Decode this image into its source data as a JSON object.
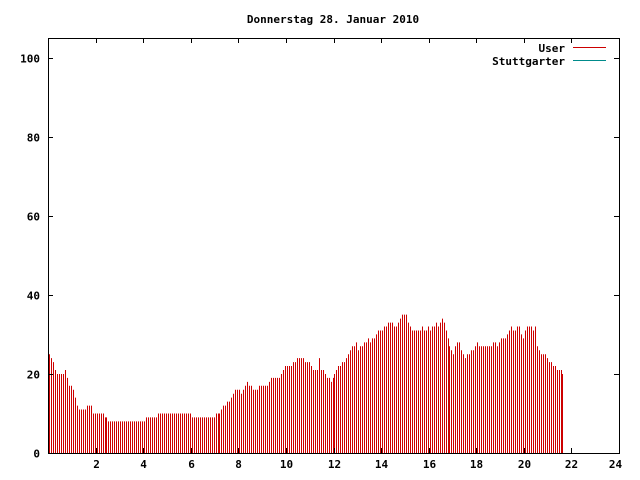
{
  "chart_data": {
    "type": "bar",
    "title": "Donnerstag 28. Januar 2010",
    "xlabel": "",
    "ylabel": "",
    "xlim": [
      0,
      24
    ],
    "ylim": [
      0,
      105
    ],
    "xticks": [
      2,
      4,
      6,
      8,
      10,
      12,
      14,
      16,
      18,
      20,
      22,
      24
    ],
    "yticks": [
      0,
      20,
      40,
      60,
      80,
      100
    ],
    "xtick_labels": [
      "2",
      "4",
      "6",
      "8",
      "10",
      "12",
      "14",
      "16",
      "18",
      "20",
      "22",
      "24"
    ],
    "ytick_labels": [
      "0",
      "20",
      "40",
      "60",
      "80",
      "100"
    ],
    "grid": false,
    "legend_position": "top-right",
    "series": [
      {
        "name": "User",
        "color": "#cc0000",
        "step_minutes": 5,
        "values": [
          25,
          24,
          23,
          21,
          20,
          20,
          20,
          20,
          21,
          19,
          17,
          17,
          16,
          14,
          12,
          11,
          11,
          11,
          11,
          12,
          12,
          12,
          10,
          10,
          10,
          10,
          10,
          10,
          9,
          9,
          8,
          8,
          8,
          8,
          8,
          8,
          8,
          8,
          8,
          8,
          8,
          8,
          8,
          8,
          8,
          8,
          8,
          8,
          8,
          9,
          9,
          9,
          9,
          9,
          9,
          10,
          10,
          10,
          10,
          10,
          10,
          10,
          10,
          10,
          10,
          10,
          10,
          10,
          10,
          10,
          10,
          10,
          9,
          9,
          9,
          9,
          9,
          9,
          9,
          9,
          9,
          9,
          9,
          9,
          10,
          10,
          10,
          11,
          12,
          12,
          13,
          13,
          14,
          15,
          16,
          16,
          16,
          15,
          16,
          17,
          18,
          17,
          17,
          16,
          16,
          16,
          17,
          17,
          17,
          17,
          17,
          18,
          19,
          19,
          19,
          19,
          19,
          20,
          21,
          22,
          22,
          22,
          22,
          23,
          23,
          24,
          24,
          24,
          24,
          23,
          23,
          23,
          22,
          21,
          21,
          21,
          24,
          21,
          21,
          20,
          19,
          19,
          18,
          19,
          20,
          21,
          22,
          22,
          23,
          23,
          24,
          25,
          26,
          27,
          27,
          28,
          26,
          27,
          27,
          28,
          28,
          29,
          28,
          29,
          29,
          30,
          31,
          31,
          31,
          32,
          32,
          33,
          33,
          33,
          32,
          32,
          33,
          34,
          35,
          35,
          35,
          33,
          32,
          31,
          31,
          31,
          31,
          31,
          32,
          31,
          31,
          32,
          31,
          32,
          32,
          33,
          32,
          33,
          34,
          33,
          31,
          29,
          27,
          26,
          25,
          27,
          28,
          28,
          26,
          25,
          24,
          25,
          25,
          26,
          26,
          27,
          28,
          27,
          27,
          27,
          27,
          27,
          27,
          27,
          28,
          28,
          27,
          28,
          29,
          29,
          29,
          30,
          31,
          32,
          31,
          31,
          32,
          32,
          30,
          29,
          31,
          32,
          32,
          32,
          31,
          32,
          27,
          26,
          25,
          25,
          25,
          24,
          23,
          23,
          22,
          22,
          21,
          21,
          21,
          20
        ]
      },
      {
        "name": "Stuttgarter",
        "color": "#008b8b",
        "values": []
      }
    ]
  }
}
